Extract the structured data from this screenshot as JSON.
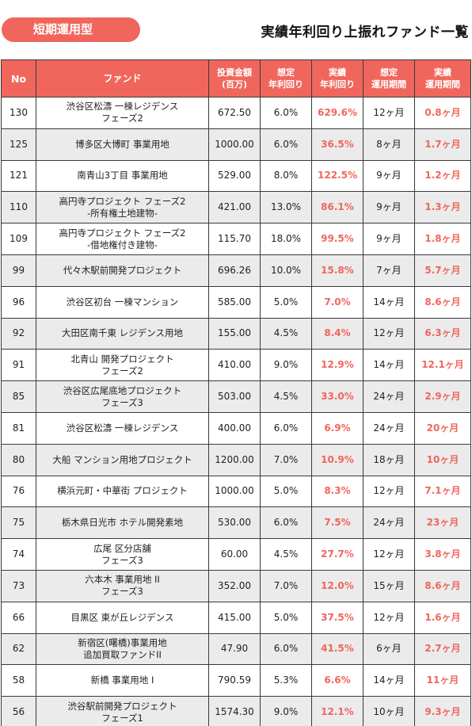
{
  "header": {
    "badge": "短期運用型",
    "title": "実績年利回り上振れファンド一覧"
  },
  "columns": {
    "no": "No",
    "fund": "ファンド",
    "amount": [
      "投資金額",
      "(百万)"
    ],
    "expected_yield": [
      "想定",
      "年利回り"
    ],
    "actual_yield": [
      "実績",
      "年利回り"
    ],
    "expected_period": [
      "想定",
      "運用期間"
    ],
    "actual_period": [
      "実績",
      "運用期間"
    ]
  },
  "rows": [
    {
      "no": "130",
      "fund": [
        "渋谷区松濤 一棟レジデンス",
        "フェーズ2"
      ],
      "amount": "672.50",
      "expected_yield": "6.0%",
      "actual_yield": "629.6%",
      "expected_period": "12ヶ月",
      "actual_period": "0.8ヶ月"
    },
    {
      "no": "125",
      "fund": [
        "博多区大博町 事業用地"
      ],
      "amount": "1000.00",
      "expected_yield": "6.0%",
      "actual_yield": "36.5%",
      "expected_period": "8ヶ月",
      "actual_period": "1.7ヶ月"
    },
    {
      "no": "121",
      "fund": [
        "南青山3丁目 事業用地"
      ],
      "amount": "529.00",
      "expected_yield": "8.0%",
      "actual_yield": "122.5%",
      "expected_period": "9ヶ月",
      "actual_period": "1.2ヶ月"
    },
    {
      "no": "110",
      "fund": [
        "高円寺プロジェクト フェーズ2",
        "-所有権土地建物-"
      ],
      "amount": "421.00",
      "expected_yield": "13.0%",
      "actual_yield": "86.1%",
      "expected_period": "9ヶ月",
      "actual_period": "1.3ヶ月"
    },
    {
      "no": "109",
      "fund": [
        "高円寺プロジェクト フェーズ2",
        "-借地権付き建物-"
      ],
      "amount": "115.70",
      "expected_yield": "18.0%",
      "actual_yield": "99.5%",
      "expected_period": "9ヶ月",
      "actual_period": "1.8ヶ月"
    },
    {
      "no": "99",
      "fund": [
        "代々木駅前開発プロジェクト"
      ],
      "amount": "696.26",
      "expected_yield": "10.0%",
      "actual_yield": "15.8%",
      "expected_period": "7ヶ月",
      "actual_period": "5.7ヶ月"
    },
    {
      "no": "96",
      "fund": [
        "渋谷区初台 一棟マンション"
      ],
      "amount": "585.00",
      "expected_yield": "5.0%",
      "actual_yield": "7.0%",
      "expected_period": "14ヶ月",
      "actual_period": "8.6ヶ月"
    },
    {
      "no": "92",
      "fund": [
        "大田区南千東 レジデンス用地"
      ],
      "amount": "155.00",
      "expected_yield": "4.5%",
      "actual_yield": "8.4%",
      "expected_period": "12ヶ月",
      "actual_period": "6.3ヶ月"
    },
    {
      "no": "91",
      "fund": [
        "北青山 開発プロジェクト",
        "フェーズ2"
      ],
      "amount": "410.00",
      "expected_yield": "9.0%",
      "actual_yield": "12.9%",
      "expected_period": "14ヶ月",
      "actual_period": "12.1ヶ月"
    },
    {
      "no": "85",
      "fund": [
        "渋谷区広尾底地プロジェクト",
        "フェーズ3"
      ],
      "amount": "503.00",
      "expected_yield": "4.5%",
      "actual_yield": "33.0%",
      "expected_period": "24ヶ月",
      "actual_period": "2.9ヶ月"
    },
    {
      "no": "81",
      "fund": [
        "渋谷区松濤 一棟レジデンス"
      ],
      "amount": "400.00",
      "expected_yield": "6.0%",
      "actual_yield": "6.9%",
      "expected_period": "24ヶ月",
      "actual_period": "20ヶ月"
    },
    {
      "no": "80",
      "fund": [
        "大船 マンション用地プロジェクト"
      ],
      "amount": "1200.00",
      "expected_yield": "7.0%",
      "actual_yield": "10.9%",
      "expected_period": "18ヶ月",
      "actual_period": "10ヶ月"
    },
    {
      "no": "76",
      "fund": [
        "横浜元町・中華街 プロジェクト"
      ],
      "amount": "1000.00",
      "expected_yield": "5.0%",
      "actual_yield": "8.3%",
      "expected_period": "12ヶ月",
      "actual_period": "7.1ヶ月"
    },
    {
      "no": "75",
      "fund": [
        "栃木県日光市 ホテル開発素地"
      ],
      "amount": "530.00",
      "expected_yield": "6.0%",
      "actual_yield": "7.5%",
      "expected_period": "24ヶ月",
      "actual_period": "23ヶ月"
    },
    {
      "no": "74",
      "fund": [
        "広尾 区分店舗",
        "フェーズ3"
      ],
      "amount": "60.00",
      "expected_yield": "4.5%",
      "actual_yield": "27.7%",
      "expected_period": "12ヶ月",
      "actual_period": "3.8ヶ月"
    },
    {
      "no": "73",
      "fund": [
        "六本木 事業用地 II",
        "フェーズ3"
      ],
      "amount": "352.00",
      "expected_yield": "7.0%",
      "actual_yield": "12.0%",
      "expected_period": "15ヶ月",
      "actual_period": "8.6ヶ月"
    },
    {
      "no": "66",
      "fund": [
        "目黒区 東が丘レジデンス"
      ],
      "amount": "415.00",
      "expected_yield": "5.0%",
      "actual_yield": "37.5%",
      "expected_period": "12ヶ月",
      "actual_period": "1.6ヶ月"
    },
    {
      "no": "62",
      "fund": [
        "新宿区(曙橋)事業用地",
        "追加買取ファンドII"
      ],
      "amount": "47.90",
      "expected_yield": "6.0%",
      "actual_yield": "41.5%",
      "expected_period": "6ヶ月",
      "actual_period": "2.7ヶ月"
    },
    {
      "no": "58",
      "fund": [
        "新橋 事業用地 I"
      ],
      "amount": "790.59",
      "expected_yield": "5.3%",
      "actual_yield": "6.6%",
      "expected_period": "14ヶ月",
      "actual_period": "11ヶ月"
    },
    {
      "no": "56",
      "fund": [
        "渋谷駅前開発プロジェクト",
        "フェーズ1"
      ],
      "amount": "1574.30",
      "expected_yield": "9.0%",
      "actual_yield": "12.1%",
      "expected_period": "10ヶ月",
      "actual_period": "9.3ヶ月"
    }
  ]
}
